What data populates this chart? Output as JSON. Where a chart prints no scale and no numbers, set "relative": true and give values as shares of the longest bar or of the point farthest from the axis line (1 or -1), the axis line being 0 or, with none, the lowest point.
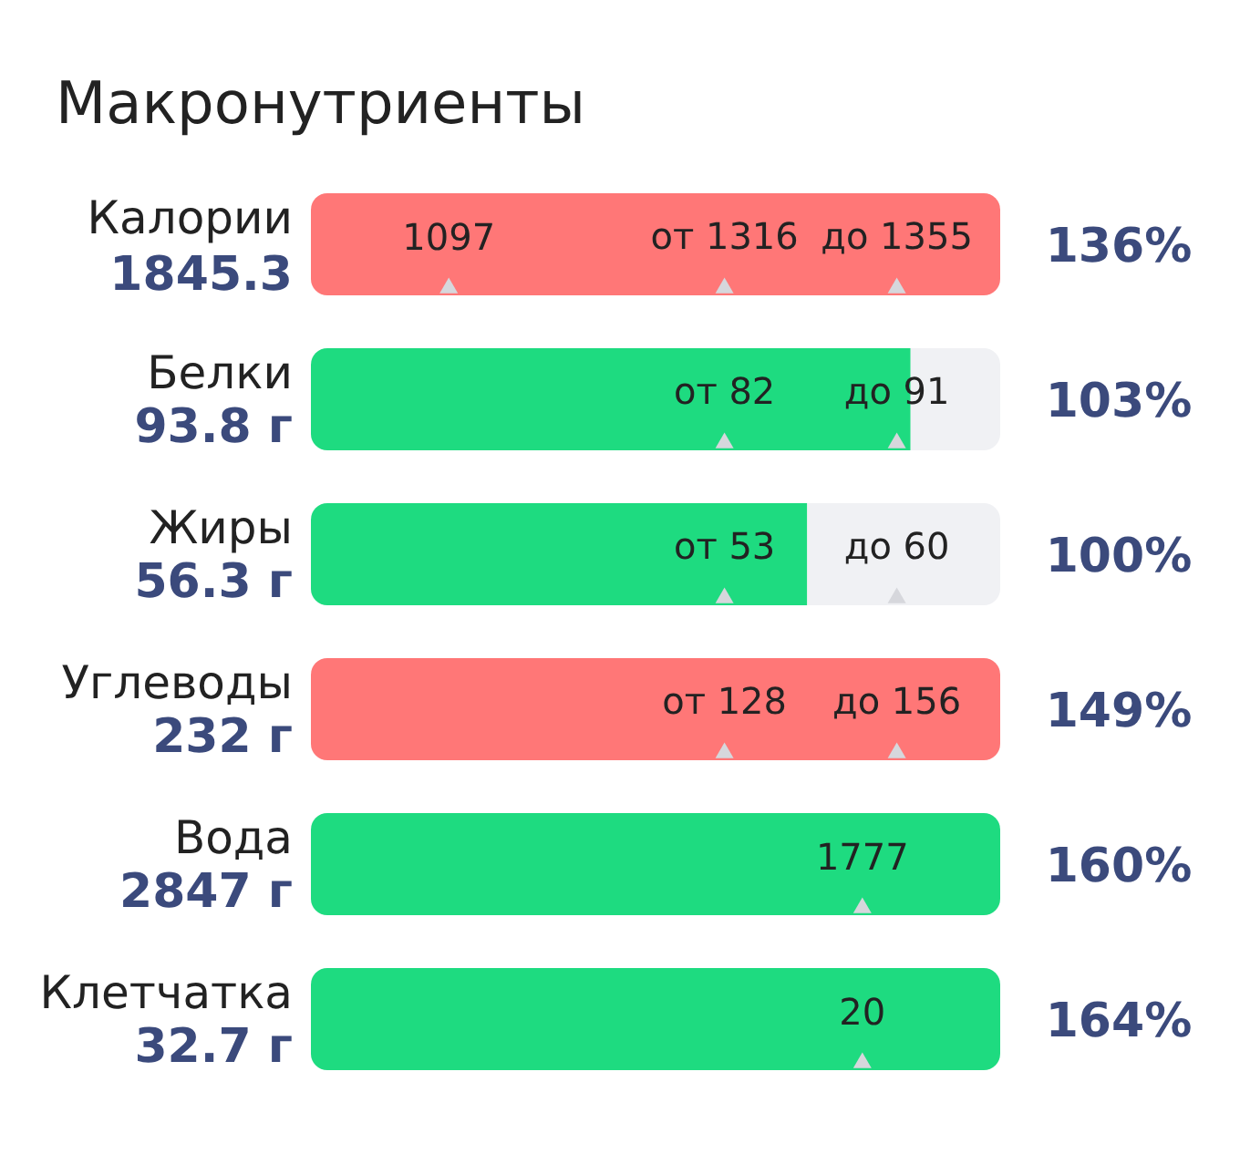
{
  "chart_data": {
    "type": "bar",
    "orientation": "horizontal",
    "stacked": true,
    "relative": true,
    "tick_labels": "y",
    "title": "Макронутриенты",
    "categories": [
      "Калории",
      "Белки",
      "Жиры",
      "Углеводы",
      "Вода",
      "Клетчатка"
    ],
    "series": [
      {
        "colors": [
          "#ff7777",
          "#1edb80",
          "#1edb80",
          "#ff7777",
          "#1edb80",
          "#1edb80"
        ],
        "values": [
          1,
          0.87,
          0.72,
          1,
          1,
          1
        ]
      },
      {
        "color": "#f0f1f4",
        "values": [
          null,
          0.13,
          0.28,
          null,
          null,
          null
        ]
      }
    ],
    "annotations": [
      "1845.3",
      "136%",
      "93.8 г",
      "103%",
      "56.3 г",
      "100%",
      "232 г",
      "149%",
      "2847 г",
      "160%",
      "32.7 г",
      "164%",
      {
        "text": "1097",
        "x": 0.2,
        "y": "Калории"
      },
      {
        "text": "от 1316",
        "x": 0.6,
        "y": "Калории"
      },
      {
        "text": "до 1355",
        "x": 0.85,
        "y": "Калории"
      },
      {
        "text": "от 82",
        "x": 0.6,
        "y": "Белки"
      },
      {
        "text": "до 91",
        "x": 0.85,
        "y": "Белки"
      },
      {
        "text": "от 53",
        "x": 0.6,
        "y": "Жиры"
      },
      {
        "text": "до 60",
        "x": 0.85,
        "y": "Жиры"
      },
      {
        "text": "от 128",
        "x": 0.6,
        "y": "Углеводы"
      },
      {
        "text": "до 156",
        "x": 0.85,
        "y": "Углеводы"
      },
      {
        "text": "1777",
        "x": 0.8,
        "y": "Вода"
      },
      {
        "text": "20",
        "x": 0.8,
        "y": "Клетчатка"
      }
    ]
  }
}
